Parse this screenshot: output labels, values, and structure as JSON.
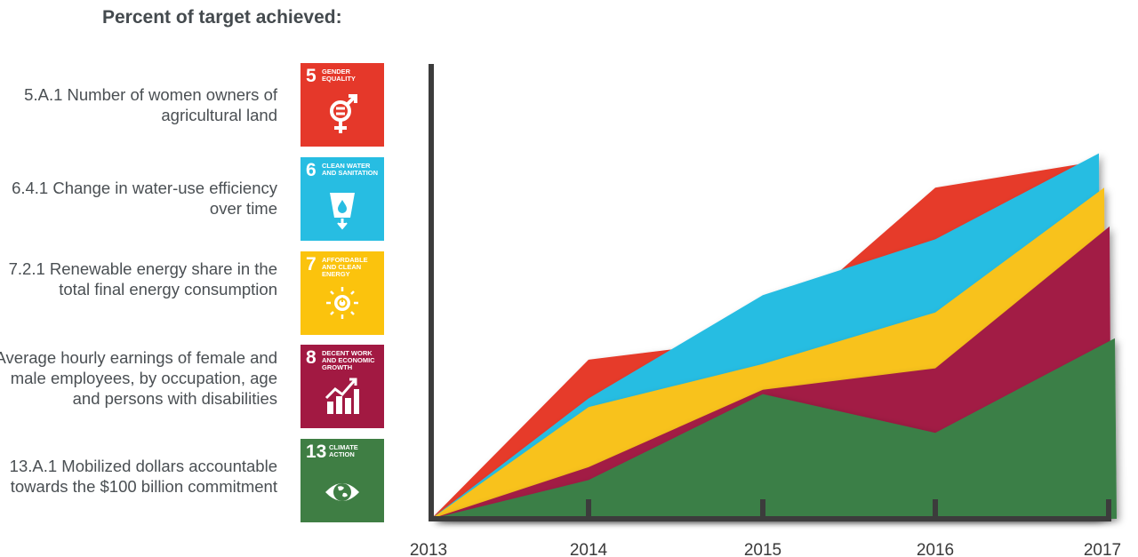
{
  "heading": "Percent of target achieved:",
  "indicators": [
    {
      "text": "5.A.1 Number of women owners of agricultural land",
      "goal_number": "5",
      "goal_label": "GENDER EQUALITY",
      "color": "#e5382a",
      "icon": "gender-equality-icon"
    },
    {
      "text": "6.4.1 Change in water-use efficiency over time",
      "goal_number": "6",
      "goal_label": "CLEAN WATER AND SANITATION",
      "color": "#27bde2",
      "icon": "water-drop-icon"
    },
    {
      "text": "7.2.1 Renewable energy share in the total final energy consumption",
      "goal_number": "7",
      "goal_label": "AFFORDABLE AND CLEAN ENERGY",
      "color": "#fbc30d",
      "icon": "sun-power-icon"
    },
    {
      "text": "Average hourly earnings of female and male employees, by occupation, age and persons with disabilities",
      "goal_number": "8",
      "goal_label": "DECENT WORK AND ECONOMIC GROWTH",
      "color": "#a21942",
      "icon": "growth-chart-icon"
    },
    {
      "text": "13.A.1 Mobilized dollars accountable towards the $100 billion commitment",
      "goal_number": "13",
      "goal_label": "CLIMATE ACTION",
      "color": "#3f7e44",
      "icon": "eye-globe-icon"
    }
  ],
  "chart_data": {
    "type": "area",
    "categories": [
      "2013",
      "2014",
      "2015",
      "2016",
      "2017"
    ],
    "ylim": [
      0,
      100
    ],
    "grid": false,
    "legend": "left",
    "series": [
      {
        "color": "#e63a2b",
        "values": [
          0,
          37,
          42,
          77,
          83
        ]
      },
      {
        "color": "#27bde2",
        "values": [
          0,
          28,
          52,
          65,
          85
        ]
      },
      {
        "color": "#f8c21a",
        "values": [
          0,
          26,
          36,
          48,
          77
        ]
      },
      {
        "color": "#a21d44",
        "values": [
          0,
          12,
          30,
          35,
          68
        ]
      },
      {
        "color": "#3a7f46",
        "values": [
          0,
          9,
          29,
          20,
          42
        ]
      }
    ]
  }
}
